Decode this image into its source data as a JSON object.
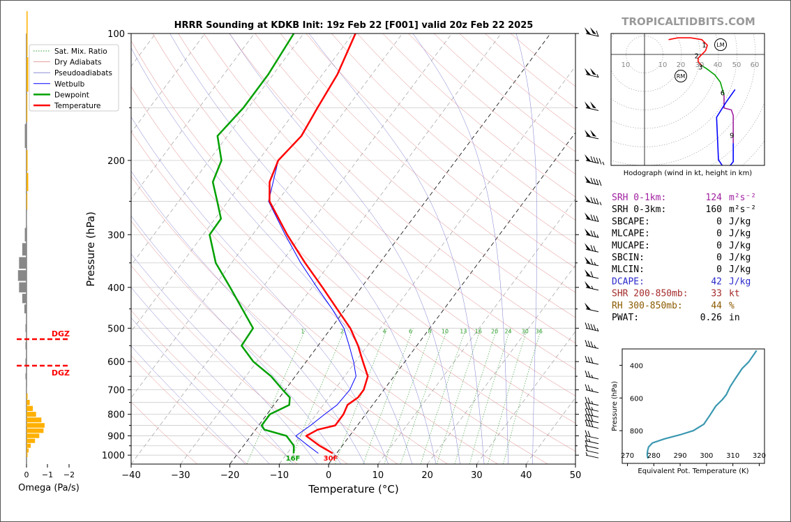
{
  "title": "HRRR Sounding at KDKB Init: 19z Feb 22 [F001] valid 20z Feb 22 2025",
  "watermark": "TROPICALTIDBITS.COM",
  "skewt": {
    "xlabel": "Temperature (°C)",
    "ylabel": "Pressure (hPa)",
    "xticks": [
      "−40",
      "−30",
      "−20",
      "−10",
      "0",
      "10",
      "20",
      "30",
      "40",
      "50"
    ],
    "yticks": [
      "100",
      "200",
      "300",
      "400",
      "500",
      "600",
      "700",
      "800",
      "900",
      "1000"
    ],
    "legend": [
      "Sat. Mix. Ratio",
      "Dry Adiabats",
      "Pseudoadiabats",
      "Wetbulb",
      "Dewpoint",
      "Temperature"
    ],
    "mix_labels": [
      "1",
      "2",
      "4",
      "6",
      "8",
      "10",
      "13",
      "16",
      "20",
      "24",
      "30",
      "36"
    ],
    "sfc_dewpoint_label": "16F",
    "sfc_temp_label": "30F"
  },
  "omega": {
    "xlabel": "Omega (Pa/s)",
    "xticks": [
      "0",
      "−1",
      "−2"
    ],
    "dgz_label_top": "DGZ",
    "dgz_label_bottom": "DGZ"
  },
  "hodograph": {
    "caption": "Hodograph (wind in kt, height in km)",
    "ring_labels": [
      "10",
      "10",
      "20",
      "30",
      "40",
      "50",
      "60"
    ],
    "height_marks": [
      "1",
      "2",
      "3",
      "6",
      "9"
    ],
    "lm_label": "LM",
    "rm_label": "RM"
  },
  "stats": [
    {
      "label": "SRH 0-1km:",
      "value": "124",
      "unit": "m²s⁻²",
      "color": "#a020a0"
    },
    {
      "label": "SRH 0-3km:",
      "value": "160",
      "unit": "m²s⁻²",
      "color": "#000000"
    },
    {
      "label": "SBCAPE:",
      "value": "0",
      "unit": "J/kg",
      "color": "#000000"
    },
    {
      "label": "MLCAPE:",
      "value": "0",
      "unit": "J/kg",
      "color": "#000000"
    },
    {
      "label": "MUCAPE:",
      "value": "0",
      "unit": "J/kg",
      "color": "#000000"
    },
    {
      "label": "SBCIN:",
      "value": "0",
      "unit": "J/kg",
      "color": "#000000"
    },
    {
      "label": "MLCIN:",
      "value": "0",
      "unit": "J/kg",
      "color": "#000000"
    },
    {
      "label": "DCAPE:",
      "value": "42",
      "unit": "J/kg",
      "color": "#2a2acc"
    },
    {
      "label": "SHR 200-850mb:",
      "value": "33",
      "unit": "kt",
      "color": "#a52a2a"
    },
    {
      "label": "RH 300-850mb:",
      "value": "44",
      "unit": "%",
      "color": "#8b5a00"
    },
    {
      "label": "PWAT:",
      "value": "0.26",
      "unit": "in",
      "color": "#000000"
    }
  ],
  "theta_e": {
    "xlabel": "Equivalent Pot. Temperature (K)",
    "ylabel": "Pressure (hPa)",
    "xticks": [
      "270",
      "280",
      "290",
      "300",
      "310",
      "320"
    ],
    "yticks": [
      "400",
      "600",
      "800"
    ]
  },
  "chart_data": [
    {
      "type": "line",
      "title": "HRRR Sounding at KDKB Init: 19z Feb 22 [F001] valid 20z Feb 22 2025",
      "xlabel": "Temperature (°C)",
      "ylabel": "Pressure (hPa)",
      "xlim": [
        -40,
        50
      ],
      "ylim": [
        1050,
        100
      ],
      "yscale": "log",
      "legend_position": "top-left",
      "series": [
        {
          "name": "Temperature",
          "color": "#ff0000",
          "p": [
            990,
            950,
            900,
            870,
            850,
            800,
            760,
            730,
            700,
            650,
            600,
            550,
            500,
            450,
            400,
            350,
            300,
            250,
            225,
            200,
            175,
            150,
            125,
            100
          ],
          "t": [
            -0.8,
            -4.6,
            -8.8,
            -7.4,
            -4.5,
            -4.5,
            -5.1,
            -4.1,
            -4.1,
            -5.3,
            -8.5,
            -11.9,
            -16.1,
            -21.7,
            -27.9,
            -35.1,
            -43.0,
            -51.6,
            -54.5,
            -56.0,
            -55.0,
            -56.0,
            -57.0,
            -59.5
          ]
        },
        {
          "name": "Dewpoint",
          "color": "#00a000",
          "p": [
            990,
            950,
            900,
            870,
            850,
            800,
            760,
            730,
            700,
            650,
            600,
            550,
            500,
            450,
            400,
            350,
            300,
            275,
            250,
            225,
            200,
            175,
            150,
            125,
            100
          ],
          "t": [
            -8.7,
            -9.8,
            -12.8,
            -18.2,
            -19.4,
            -19.4,
            -16.9,
            -17.9,
            -20.5,
            -24.9,
            -30.7,
            -35.5,
            -35.8,
            -40.9,
            -46.6,
            -53.2,
            -58.7,
            -58.8,
            -62.2,
            -66.0,
            -67.5,
            -72.0,
            -71.0,
            -71.0,
            -72.0
          ]
        },
        {
          "name": "Wetbulb",
          "color": "#0000ff",
          "p": [
            990,
            950,
            900,
            850,
            800,
            760,
            700,
            650,
            600,
            550,
            500,
            450,
            400,
            350,
            300,
            250,
            200,
            175,
            150,
            125,
            100
          ],
          "t": [
            -3.7,
            -6.9,
            -10.9,
            -9.5,
            -8.3,
            -7.2,
            -6.9,
            -7.7,
            -10.4,
            -13.7,
            -17.4,
            -22.7,
            -29.0,
            -36.0,
            -43.4,
            -51.8,
            -56.0,
            -55.0,
            -56.0,
            -57.0,
            -59.5
          ]
        }
      ]
    },
    {
      "type": "bar",
      "xlabel": "Omega (Pa/s)",
      "xlim": [
        0.7,
        -2.1
      ],
      "p": [
        1000,
        975,
        950,
        925,
        900,
        875,
        850,
        825,
        800,
        775,
        750,
        725,
        700,
        650,
        600,
        550,
        500,
        450,
        425,
        400,
        375,
        350,
        325,
        300,
        275,
        250,
        225,
        200,
        175,
        150,
        125,
        100
      ],
      "omega": [
        -0.05,
        -0.1,
        -0.2,
        -0.4,
        -0.6,
        -0.8,
        -0.85,
        -0.7,
        -0.45,
        -0.3,
        -0.15,
        -0.05,
        0.03,
        0.05,
        0.05,
        0.05,
        0.05,
        0.1,
        0.2,
        0.35,
        0.4,
        0.35,
        0.2,
        0.08,
        0.03,
        -0.03,
        -0.08,
        -0.05,
        0.08,
        -0.03,
        -0.08,
        -0.05
      ]
    },
    {
      "type": "line",
      "title": "Hodograph (wind in kt, height in km)",
      "series": [
        {
          "name": "0-1km",
          "color": "#ff0000",
          "u": [
            13,
            18,
            25,
            31,
            34,
            33
          ],
          "v": [
            8,
            9,
            9,
            8,
            5,
            2
          ]
        },
        {
          "name": "1-3km",
          "color": "#ff0000",
          "u": [
            33,
            29,
            29,
            31
          ],
          "v": [
            2,
            -2,
            -4,
            -6
          ]
        },
        {
          "name": "3-6km",
          "color": "#00a000",
          "u": [
            31,
            34,
            38,
            41,
            43
          ],
          "v": [
            -6,
            -8,
            -11,
            -15,
            -22
          ]
        },
        {
          "name": "6-9km",
          "color": "#a020a0",
          "u": [
            43,
            43,
            47,
            48,
            48
          ],
          "v": [
            -22,
            -29,
            -30,
            -33,
            -48
          ]
        },
        {
          "name": "9-12km",
          "color": "#0000ff",
          "u": [
            48,
            48,
            44,
            40,
            39,
            44,
            49
          ],
          "v": [
            -48,
            -58,
            -63,
            -57,
            -34,
            -26,
            -19
          ]
        }
      ]
    },
    {
      "type": "line",
      "xlabel": "Equivalent Pot. Temperature (K)",
      "ylabel": "Pressure (hPa)",
      "xlim": [
        268,
        322
      ],
      "ylim": [
        1000,
        300
      ],
      "series": [
        {
          "name": "Equivalent Pot. Temperature",
          "color": "#3a98b0",
          "theta_e": [
            277.8,
            277.5,
            277.6,
            278.0,
            279.5,
            284.0,
            290.0,
            295.0,
            299.0,
            301.5,
            303.5,
            306.0,
            307.5,
            309.0,
            311.0,
            313.5,
            316.0,
            319.0
          ],
          "p": [
            970,
            950,
            925,
            900,
            875,
            850,
            825,
            800,
            760,
            700,
            650,
            610,
            580,
            530,
            480,
            420,
            380,
            310
          ]
        }
      ]
    }
  ]
}
